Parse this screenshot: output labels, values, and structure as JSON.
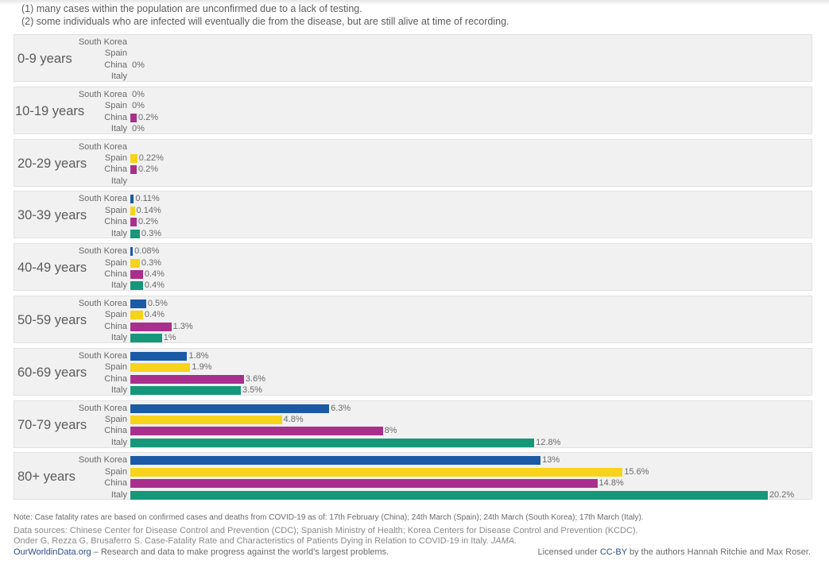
{
  "intro": {
    "line1": "(1) many cases within the population are unconfirmed due to a lack of testing.",
    "line2": "(2) some individuals who are infected will eventually die from the disease, but are still alive at time of recording."
  },
  "colors": {
    "South Korea": "#1a5aa6",
    "Spain": "#f7d31b",
    "China": "#a8308c",
    "Italy": "#16977a"
  },
  "chart_data": {
    "type": "bar",
    "orientation": "horizontal",
    "countries": [
      "South Korea",
      "Spain",
      "China",
      "Italy"
    ],
    "groups": [
      {
        "age": "0-9 years",
        "values": [
          null,
          null,
          0,
          null
        ],
        "labels": [
          "",
          "",
          "0%",
          ""
        ]
      },
      {
        "age": "10-19 years",
        "values": [
          0,
          0,
          0.2,
          0
        ],
        "labels": [
          "0%",
          "0%",
          "0.2%",
          "0%"
        ]
      },
      {
        "age": "20-29 years",
        "values": [
          null,
          0.22,
          0.2,
          null
        ],
        "labels": [
          "",
          "0.22%",
          "0.2%",
          ""
        ]
      },
      {
        "age": "30-39 years",
        "values": [
          0.11,
          0.14,
          0.2,
          0.3
        ],
        "labels": [
          "0.11%",
          "0.14%",
          "0.2%",
          "0.3%"
        ]
      },
      {
        "age": "40-49 years",
        "values": [
          0.08,
          0.3,
          0.4,
          0.4
        ],
        "labels": [
          "0.08%",
          "0.3%",
          "0.4%",
          "0.4%"
        ]
      },
      {
        "age": "50-59 years",
        "values": [
          0.5,
          0.4,
          1.3,
          1
        ],
        "labels": [
          "0.5%",
          "0.4%",
          "1.3%",
          "1%"
        ]
      },
      {
        "age": "60-69 years",
        "values": [
          1.8,
          1.9,
          3.6,
          3.5
        ],
        "labels": [
          "1.8%",
          "1.9%",
          "3.6%",
          "3.5%"
        ]
      },
      {
        "age": "70-79 years",
        "values": [
          6.3,
          4.8,
          8,
          12.8
        ],
        "labels": [
          "6.3%",
          "4.8%",
          "8%",
          "12.8%"
        ]
      },
      {
        "age": "80+ years",
        "values": [
          13,
          15.6,
          14.8,
          20.2
        ],
        "labels": [
          "13%",
          "15.6%",
          "14.8%",
          "20.2%"
        ]
      }
    ],
    "xlim": [
      0,
      20.2
    ]
  },
  "note": "Note: Case fatality rates are based on confirmed cases and deaths from COVID-19 as of: 17th February (China); 24th March (Spain); 24th March (South Korea); 17th March (Italy).",
  "sources": {
    "line1": "Data sources: Chinese Center for Disease Control and Prevention (CDC); Spanish Ministry of Health; Korea Centers for Disease Control and Prevention (KCDC).",
    "line2_prefix": "Onder G, Rezza G, Brusaferro S. Case-Fatality Rate and Characteristics of Patients Dying in Relation to COVID-19 in Italy. ",
    "line2_journal": "JAMA."
  },
  "footer": {
    "site": "OurWorldinData.org",
    "tagline": " – Research and data to make progress against the world’s largest problems.",
    "license_prefix": "Licensed under ",
    "license_link": "CC-BY",
    "license_suffix": " by the authors Hannah Ritchie and Max Roser."
  }
}
